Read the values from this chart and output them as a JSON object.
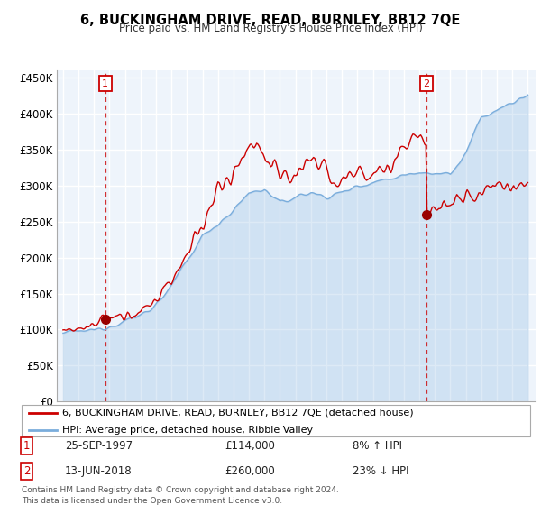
{
  "title": "6, BUCKINGHAM DRIVE, READ, BURNLEY, BB12 7QE",
  "subtitle": "Price paid vs. HM Land Registry's House Price Index (HPI)",
  "ylim": [
    0,
    460000
  ],
  "yticks": [
    0,
    50000,
    100000,
    150000,
    200000,
    250000,
    300000,
    350000,
    400000,
    450000
  ],
  "ytick_labels": [
    "£0",
    "£50K",
    "£100K",
    "£150K",
    "£200K",
    "£250K",
    "£300K",
    "£350K",
    "£400K",
    "£450K"
  ],
  "sale1_year": 1997.73,
  "sale1_price": 114000,
  "sale2_year": 2018.45,
  "sale2_price": 260000,
  "line1_color": "#cc0000",
  "line2_color": "#7aaddc",
  "fill_color": "#ddeeff",
  "grid_color": "#cccccc",
  "background_color": "#ffffff",
  "legend1": "6, BUCKINGHAM DRIVE, READ, BURNLEY, BB12 7QE (detached house)",
  "legend2": "HPI: Average price, detached house, Ribble Valley",
  "sale1_label": "25-SEP-1997",
  "sale1_price_label": "£114,000",
  "sale1_hpi": "8% ↑ HPI",
  "sale2_label": "13-JUN-2018",
  "sale2_price_label": "£260,000",
  "sale2_hpi": "23% ↓ HPI",
  "footnote": "Contains HM Land Registry data © Crown copyright and database right 2024.\nThis data is licensed under the Open Government Licence v3.0.",
  "x_start_year": 1995,
  "x_end_year": 2025
}
